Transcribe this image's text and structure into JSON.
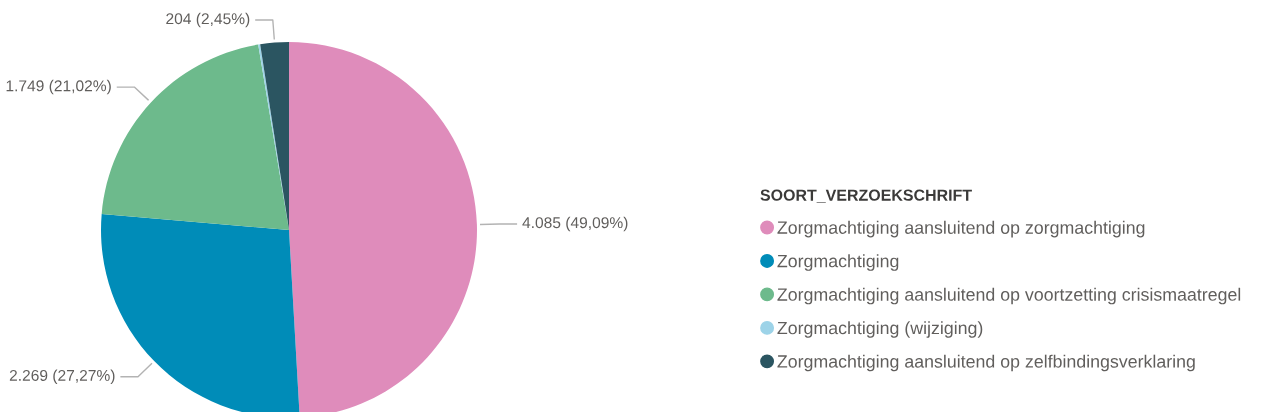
{
  "chart_data": {
    "type": "pie",
    "categories": [
      "Zorgmachtiging aansluitend op zorgmachtiging",
      "Zorgmachtiging",
      "Zorgmachtiging aansluitend op voortzetting crisismaatregel",
      "Zorgmachtiging (wijziging)",
      "Zorgmachtiging aansluitend op zelfbindingsverklaring"
    ],
    "values": [
      4085,
      2269,
      1749,
      14,
      204
    ],
    "colors": [
      "#df8cbb",
      "#008cb8",
      "#6dba8c",
      "#9dd3e8",
      "#2b5561"
    ],
    "value_labels": [
      "4.085 (49,09%)",
      "2.269 (27,27%)",
      "1.749 (21,02%)",
      null,
      "204 (2,45%)"
    ],
    "legend_title": "SOORT_VERZOEKSCHRIFT",
    "legend": "right"
  }
}
